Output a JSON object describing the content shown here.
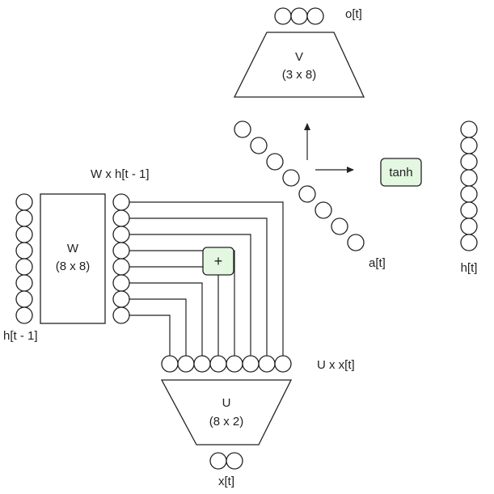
{
  "labels": {
    "o_t": "o[t]",
    "v_name": "V",
    "v_dim": "(3 x 8)",
    "wh_label": "W x h[t - 1]",
    "w_name": "W",
    "w_dim": "(8 x 8)",
    "h_prev": "h[t - 1]",
    "a_t": "a[t]",
    "h_t": "h[t]",
    "ux_label": "U x x[t]",
    "u_name": "U",
    "u_dim": "(8 x 2)",
    "x_t": "x[t]"
  },
  "ops": {
    "add": "+",
    "tanh": "tanh"
  },
  "colors": {
    "operator_fill": "#e3f7e1",
    "stroke": "#222222"
  },
  "layers": {
    "o_t_size": 3,
    "h_prev_size": 8,
    "wh_size": 8,
    "a_t_size": 8,
    "h_t_size": 8,
    "ux_size": 8,
    "x_t_size": 2
  }
}
